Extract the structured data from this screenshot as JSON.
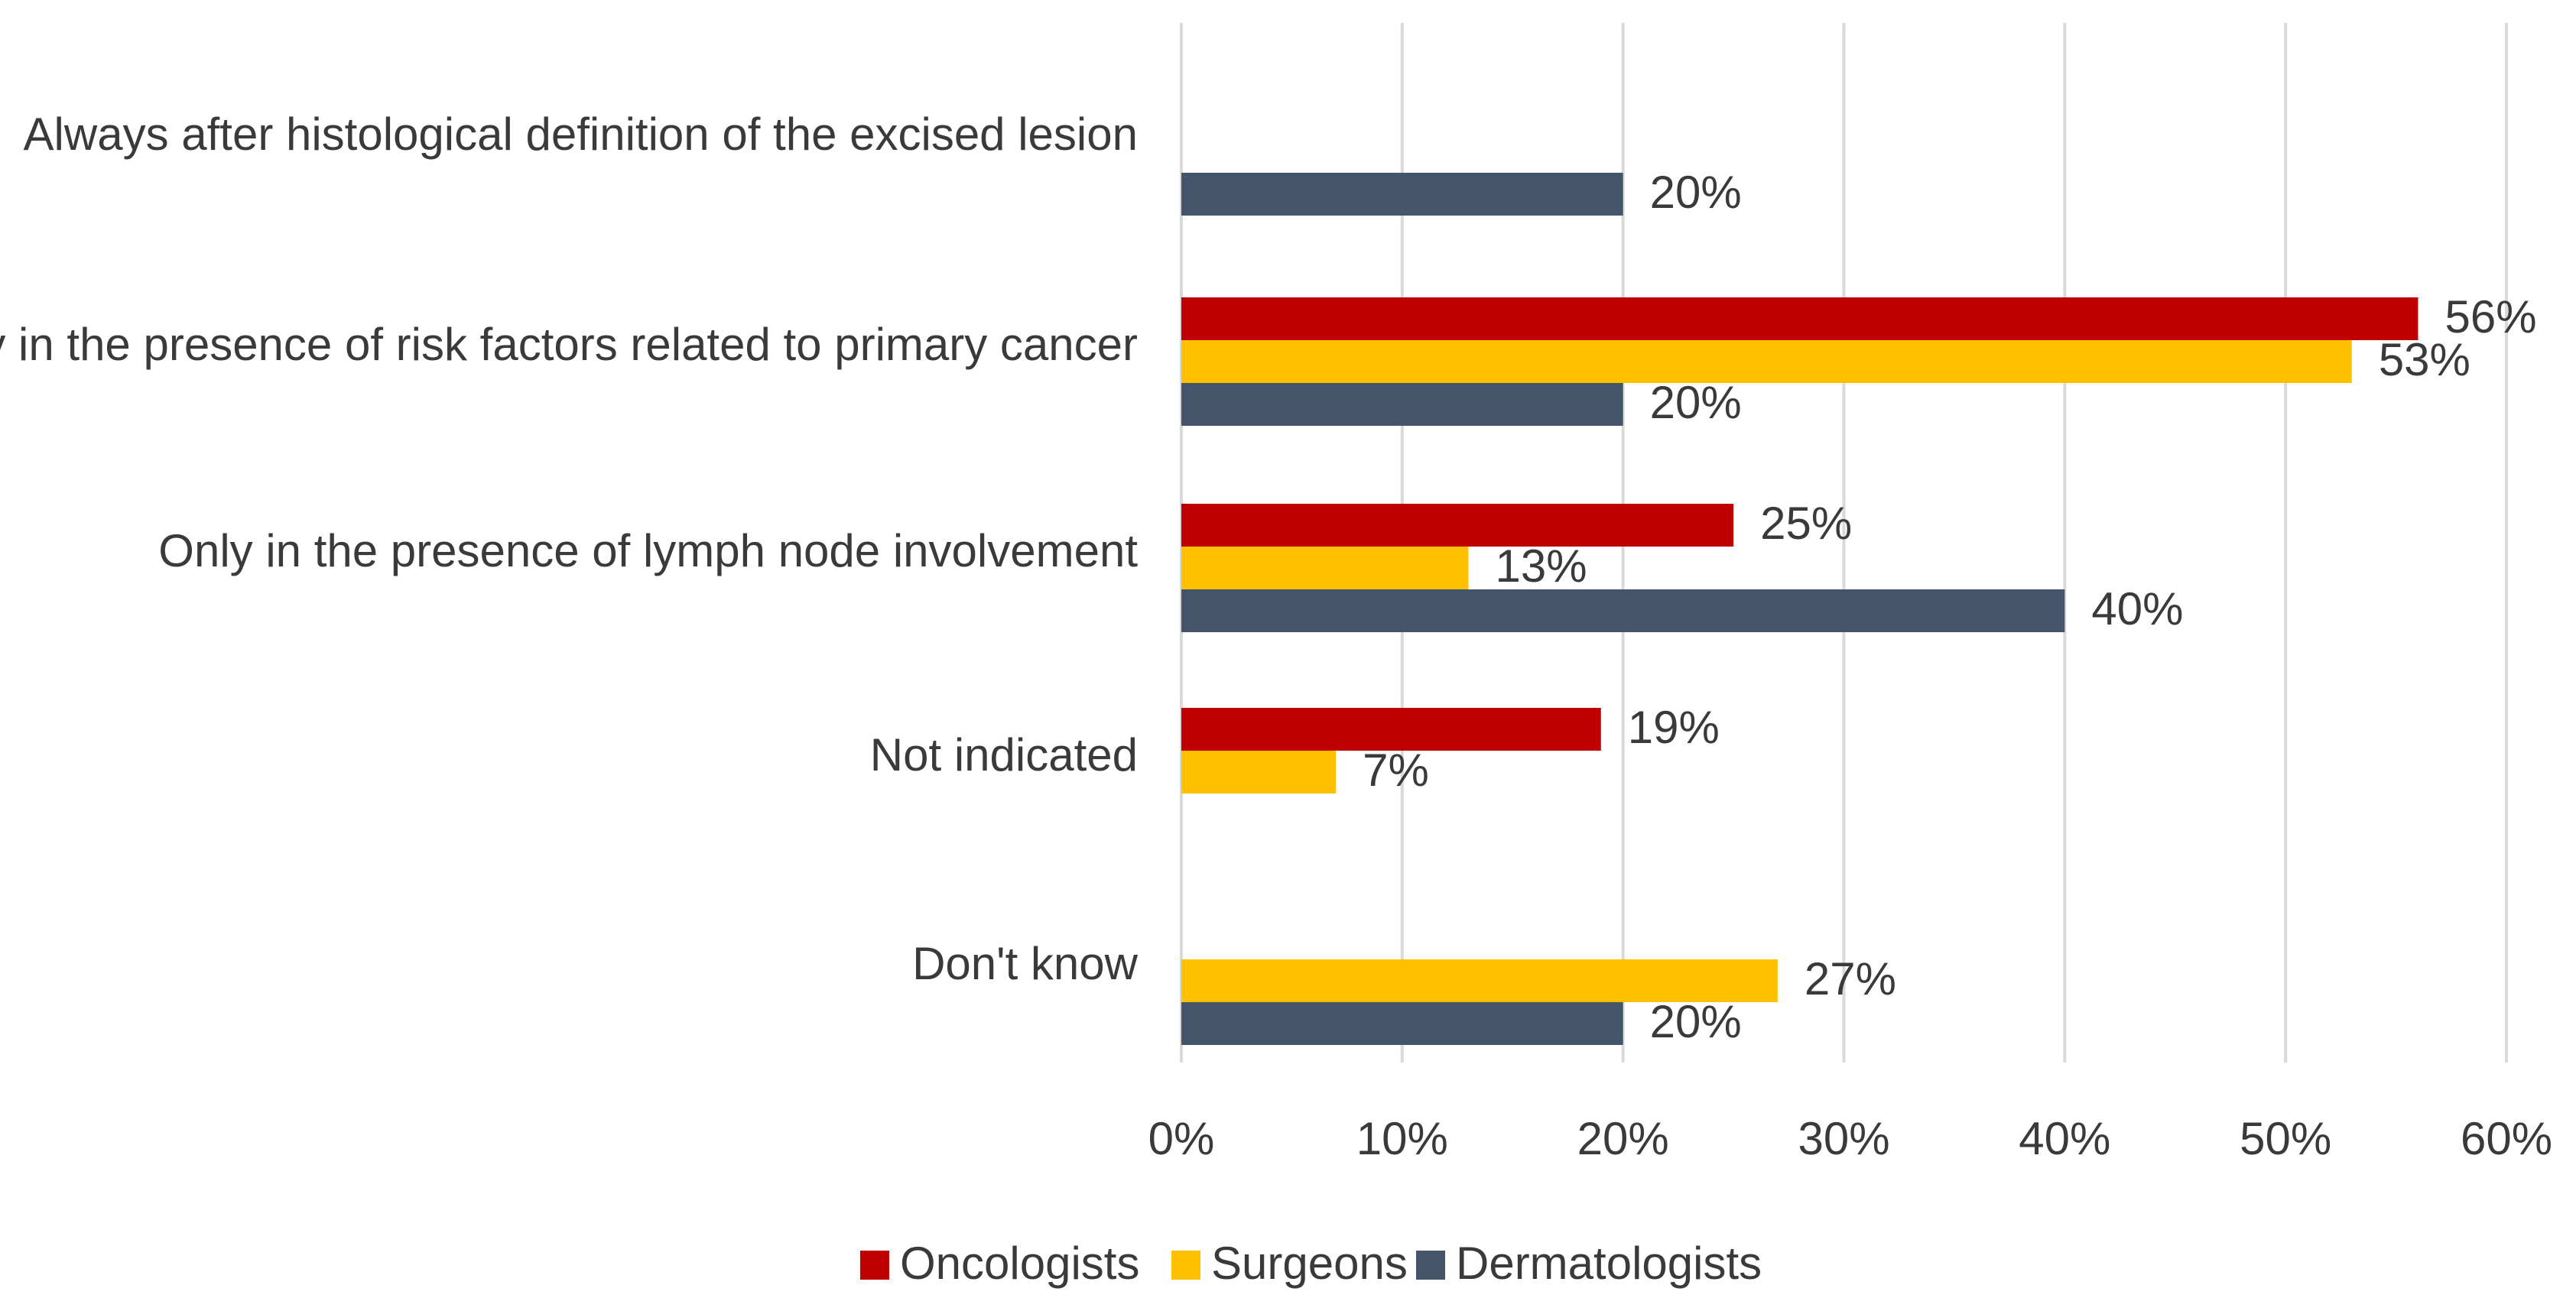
{
  "chart_data": {
    "type": "bar",
    "orientation": "horizontal",
    "categories": [
      "Always after histological definition of the excised lesion",
      "Only in the presence of risk factors related to primary cancer",
      "Only in the presence of lymph node involvement",
      "Not indicated",
      "Don't know"
    ],
    "series": [
      {
        "name": "Oncologists",
        "color": "#c00000",
        "values": [
          null,
          56,
          25,
          19,
          null
        ],
        "labels": [
          "",
          "56%",
          "25%",
          "19%",
          ""
        ]
      },
      {
        "name": "Surgeons",
        "color": "#ffc000",
        "values": [
          null,
          53,
          13,
          7,
          27
        ],
        "labels": [
          "",
          "53%",
          "13%",
          "7%",
          "27%"
        ]
      },
      {
        "name": "Dermatologists",
        "color": "#44546a",
        "values": [
          20,
          20,
          40,
          null,
          20
        ],
        "labels": [
          "20%",
          "20%",
          "40%",
          "",
          "20%"
        ]
      }
    ],
    "xlim": [
      0,
      60
    ],
    "xticks": [
      0,
      10,
      20,
      30,
      40,
      50,
      60
    ],
    "xtick_labels": [
      "0%",
      "10%",
      "20%",
      "30%",
      "40%",
      "50%",
      "60%"
    ],
    "grid": "vertical",
    "legend_position": "bottom",
    "title": "",
    "xlabel": "",
    "ylabel": ""
  }
}
